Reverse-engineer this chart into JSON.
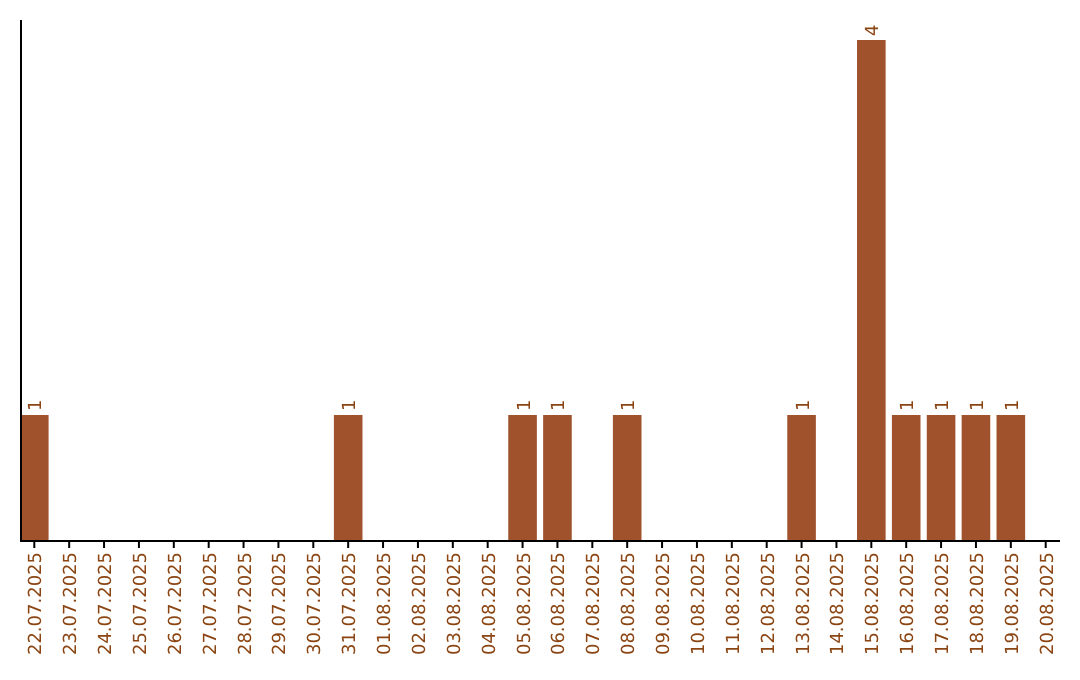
{
  "chart_data": {
    "type": "bar",
    "categories": [
      "22.07.2025",
      "23.07.2025",
      "24.07.2025",
      "25.07.2025",
      "26.07.2025",
      "27.07.2025",
      "28.07.2025",
      "29.07.2025",
      "30.07.2025",
      "31.07.2025",
      "01.08.2025",
      "02.08.2025",
      "03.08.2025",
      "04.08.2025",
      "05.08.2025",
      "06.08.2025",
      "07.08.2025",
      "08.08.2025",
      "09.08.2025",
      "10.08.2025",
      "11.08.2025",
      "12.08.2025",
      "13.08.2025",
      "14.08.2025",
      "15.08.2025",
      "16.08.2025",
      "17.08.2025",
      "18.08.2025",
      "19.08.2025",
      "20.08.2025"
    ],
    "values": [
      1,
      null,
      null,
      null,
      null,
      null,
      null,
      null,
      null,
      1,
      null,
      null,
      null,
      null,
      1,
      1,
      null,
      1,
      null,
      null,
      null,
      null,
      1,
      null,
      4,
      1,
      1,
      1,
      1,
      null
    ],
    "color": "#a0522d",
    "data_labels": true,
    "relative": false
  }
}
